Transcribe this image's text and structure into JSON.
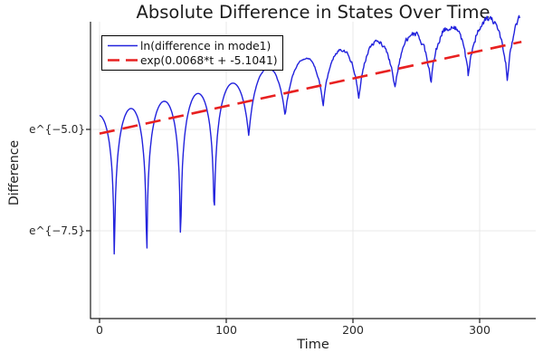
{
  "chart_data": {
    "type": "line",
    "title": "Absolute Difference in States Over Time",
    "xlabel": "Time",
    "ylabel": "Difference",
    "background": "#ffffff",
    "grid": true,
    "grid_color": "#e8e8e8",
    "axis_color": "#1d1d1d",
    "tick_label_color": "#2a2a2a",
    "x_ticks": [
      0,
      100,
      200,
      300
    ],
    "y_ticks": [
      {
        "label": "e^{−5.0}",
        "ln": -5.0
      },
      {
        "label": "e^{−7.5}",
        "ln": -7.5
      }
    ],
    "xlim": [
      -7,
      344
    ],
    "ylim_ln": [
      -9.85,
      -2.35
    ],
    "legend_position": "top-left",
    "series": [
      {
        "name": "ln(difference in mode1)",
        "color": "#2222dd",
        "style": "solid",
        "width": 1.4,
        "description": "log-scale absolute difference oscillating as |sin| between dips, exponentially growing envelope, noisy after t~120",
        "model": {
          "envelope_ln_intercept": -4.66,
          "envelope_slope": 0.0068,
          "dip_times": [
            11.7,
            37.2,
            64.0,
            90.5,
            117.8,
            146.5,
            176.5,
            204.5,
            233.0,
            261.5,
            291.0,
            322.0
          ],
          "floor_points": [
            [
              0,
              -9.0
            ],
            [
              11.7,
              -9.0
            ],
            [
              37.2,
              -9.5
            ],
            [
              64,
              -8.55
            ],
            [
              90.5,
              -7.55
            ],
            [
              117.8,
              -5.18
            ],
            [
              146.5,
              -4.7
            ],
            [
              176.5,
              -4.4
            ],
            [
              204.5,
              -4.2
            ],
            [
              233,
              -4.02
            ],
            [
              261.5,
              -3.86
            ],
            [
              291,
              -3.64
            ],
            [
              322,
              -3.8
            ],
            [
              332,
              -3.35
            ]
          ],
          "noise_amp": 0.14,
          "noise_start_t": 115,
          "noise_full_t": 260,
          "t_start": 0,
          "t_end": 332,
          "dt": 0.55,
          "seed": 3
        }
      },
      {
        "name": "exp(0.0068*t + -5.1041)",
        "color": "#e82020",
        "style": "dashed",
        "width": 2.6,
        "model": {
          "type": "linear-ln",
          "slope": 0.0068,
          "intercept": -5.1041,
          "t_start": 0,
          "t_end": 333
        }
      }
    ]
  }
}
